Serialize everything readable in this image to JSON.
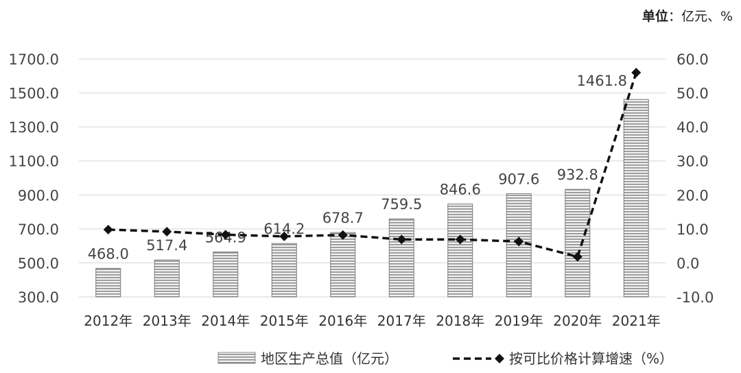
{
  "chart_data": {
    "type": "bar",
    "unit_label_bold": "单位",
    "unit_label_rest": "：亿元、%",
    "categories": [
      "2012年",
      "2013年",
      "2014年",
      "2015年",
      "2016年",
      "2017年",
      "2018年",
      "2019年",
      "2020年",
      "2021年"
    ],
    "series": [
      {
        "name": "地区生产总值（亿元）",
        "type": "bar",
        "axis": "left",
        "values": [
          468.0,
          517.4,
          564.9,
          614.2,
          678.7,
          759.5,
          846.6,
          907.6,
          932.8,
          1461.8
        ],
        "labels": [
          "468.0",
          "517.4",
          "564.9",
          "614.2",
          "678.7",
          "759.5",
          "846.6",
          "907.6",
          "932.8",
          "1461.8"
        ]
      },
      {
        "name": "按可比价格计算增速（%）",
        "type": "line",
        "axis": "right",
        "values": [
          9.8,
          9.2,
          8.3,
          7.8,
          8.2,
          6.9,
          6.9,
          6.3,
          1.8,
          56.0
        ]
      }
    ],
    "y_left": {
      "min": 300,
      "max": 1700,
      "ticks": [
        "300.0",
        "500.0",
        "700.0",
        "900.0",
        "1100.0",
        "1300.0",
        "1500.0",
        "1700.0"
      ]
    },
    "y_right": {
      "min": -10,
      "max": 60,
      "ticks": [
        "-10.0",
        "0.0",
        "10.0",
        "20.0",
        "30.0",
        "40.0",
        "50.0",
        "60.0"
      ]
    },
    "grid": true,
    "legend_position": "bottom"
  }
}
